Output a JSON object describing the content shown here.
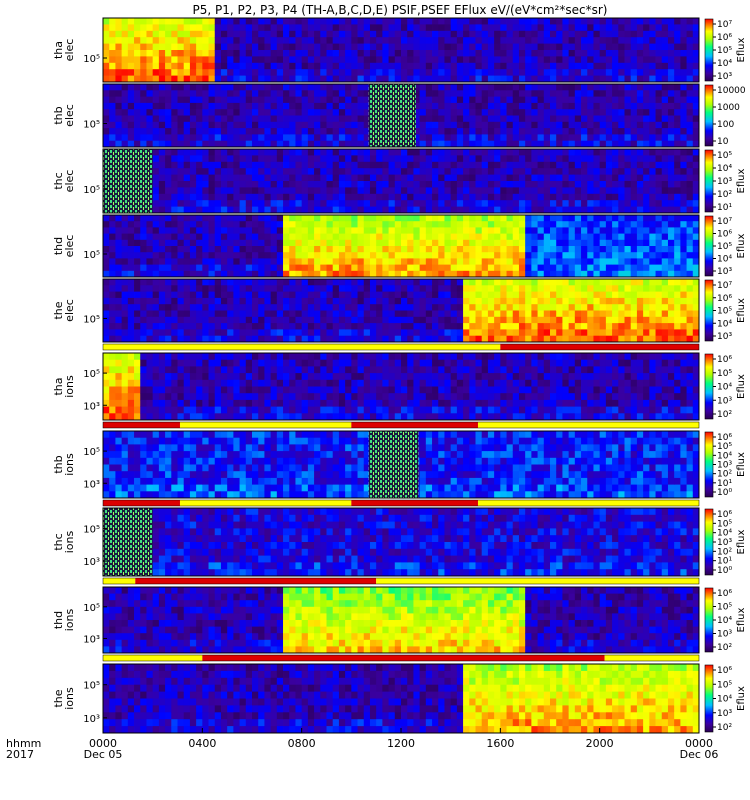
{
  "chart_data": {
    "type": "heatmap",
    "title": "P5, P1, P2, P3, P4 (TH-A,B,C,D,E) PSIF,PSEF EFlux eV/(eV*cm²*sec*sr)",
    "x_axis": {
      "row_label": "hhmm",
      "year_label": "2017",
      "range": [
        "0000 Dec 05",
        "0000 Dec 06"
      ],
      "ticks": [
        {
          "h": 0,
          "label": "0000",
          "sub": "Dec 05"
        },
        {
          "h": 4,
          "label": "0400",
          "sub": ""
        },
        {
          "h": 8,
          "label": "0800",
          "sub": ""
        },
        {
          "h": 12,
          "label": "1200",
          "sub": ""
        },
        {
          "h": 16,
          "label": "1600",
          "sub": ""
        },
        {
          "h": 20,
          "label": "2000",
          "sub": ""
        },
        {
          "h": 24,
          "label": "0000",
          "sub": "Dec 06"
        }
      ]
    },
    "colorbar_label": "Eflux",
    "panels": [
      {
        "name": "tha elec",
        "ylabel": [
          "tha",
          "elec"
        ],
        "yticks": [
          "10⁵"
        ],
        "cbar_ticks": [
          "10⁷",
          "10⁶",
          "10⁵",
          "10⁴",
          "10³"
        ],
        "cbar_title": "Eflux",
        "features": [
          {
            "t0": 0.0,
            "t1": 4.5,
            "level": 0.95,
            "desc": "intense low-energy flux decaying"
          },
          {
            "t0": 4.5,
            "t1": 24.0,
            "level": 0.15
          }
        ],
        "hatch": []
      },
      {
        "name": "thb elec",
        "ylabel": [
          "thb",
          "elec"
        ],
        "yticks": [
          "10⁵"
        ],
        "cbar_ticks": [
          "10000",
          "1000",
          "100",
          "10"
        ],
        "cbar_title": "",
        "features": [
          {
            "t0": 0.0,
            "t1": 24.0,
            "level": 0.15
          }
        ],
        "hatch": [
          {
            "t0": 10.7,
            "t1": 12.6
          }
        ]
      },
      {
        "name": "thc elec",
        "ylabel": [
          "thc",
          "elec"
        ],
        "yticks": [
          "10⁵"
        ],
        "cbar_ticks": [
          "10⁵",
          "10⁴",
          "10³",
          "10²",
          "10¹"
        ],
        "cbar_title": "Eflux",
        "features": [
          {
            "t0": 0.0,
            "t1": 24.0,
            "level": 0.15
          }
        ],
        "hatch": [
          {
            "t0": 0.0,
            "t1": 2.0
          }
        ]
      },
      {
        "name": "thd elec",
        "ylabel": [
          "thd",
          "elec"
        ],
        "yticks": [
          "10⁵"
        ],
        "cbar_ticks": [
          "10⁷",
          "10⁶",
          "10⁵",
          "10⁴",
          "10³"
        ],
        "cbar_title": "Eflux",
        "features": [
          {
            "t0": 0.0,
            "t1": 7.3,
            "level": 0.15
          },
          {
            "t0": 7.3,
            "t1": 17.0,
            "level": 0.9,
            "desc": "plasma sheet electrons"
          },
          {
            "t0": 17.0,
            "t1": 24.0,
            "level": 0.35
          }
        ],
        "hatch": []
      },
      {
        "name": "the elec",
        "ylabel": [
          "the",
          "elec"
        ],
        "yticks": [
          "10⁵"
        ],
        "cbar_ticks": [
          "10⁷",
          "10⁶",
          "10⁵",
          "10⁴",
          "10³"
        ],
        "cbar_title": "Eflux",
        "features": [
          {
            "t0": 0.0,
            "t1": 14.5,
            "level": 0.15
          },
          {
            "t0": 14.5,
            "t1": 24.0,
            "level": 0.95,
            "desc": "plasma sheet electrons"
          }
        ],
        "hatch": []
      },
      {
        "name": "tha ions",
        "ylabel": [
          "tha",
          "ions"
        ],
        "yticks": [
          "10⁵",
          "10³"
        ],
        "cbar_ticks": [
          "10⁶",
          "10⁵",
          "10⁴",
          "10³",
          "10²"
        ],
        "cbar_title": "Eflux",
        "features": [
          {
            "t0": 0.0,
            "t1": 1.5,
            "level": 0.95
          },
          {
            "t0": 1.5,
            "t1": 24.0,
            "level": 0.15
          }
        ],
        "hatch": []
      },
      {
        "name": "thb ions",
        "ylabel": [
          "thb",
          "ions"
        ],
        "yticks": [
          "10⁵",
          "10³"
        ],
        "cbar_ticks": [
          "10⁶",
          "10⁵",
          "10⁴",
          "10³",
          "10²",
          "10¹",
          "10⁰"
        ],
        "cbar_title": "Eflux",
        "features": [
          {
            "t0": 0.0,
            "t1": 24.0,
            "level": 0.25
          }
        ],
        "hatch": [
          {
            "t0": 10.7,
            "t1": 12.7
          }
        ]
      },
      {
        "name": "thc ions",
        "ylabel": [
          "thc",
          "ions"
        ],
        "yticks": [
          "10⁵",
          "10³"
        ],
        "cbar_ticks": [
          "10⁶",
          "10⁵",
          "10⁴",
          "10³",
          "10²",
          "10¹",
          "10⁰"
        ],
        "cbar_title": "Eflux",
        "features": [
          {
            "t0": 0.0,
            "t1": 24.0,
            "level": 0.2
          }
        ],
        "hatch": [
          {
            "t0": 0.0,
            "t1": 2.0
          }
        ]
      },
      {
        "name": "thd ions",
        "ylabel": [
          "thd",
          "ions"
        ],
        "yticks": [
          "10⁵",
          "10³"
        ],
        "cbar_ticks": [
          "10⁶",
          "10⁵",
          "10⁴",
          "10³",
          "10²"
        ],
        "cbar_title": "Eflux",
        "features": [
          {
            "t0": 0.0,
            "t1": 7.3,
            "level": 0.15
          },
          {
            "t0": 7.3,
            "t1": 17.0,
            "level": 0.85,
            "desc": "plasma sheet ions"
          },
          {
            "t0": 17.0,
            "t1": 24.0,
            "level": 0.15
          }
        ],
        "hatch": []
      },
      {
        "name": "the ions",
        "ylabel": [
          "the",
          "ions"
        ],
        "yticks": [
          "10⁵",
          "10³"
        ],
        "cbar_ticks": [
          "10⁶",
          "10⁵",
          "10⁴",
          "10³",
          "10²"
        ],
        "cbar_title": "Eflux",
        "features": [
          {
            "t0": 0.0,
            "t1": 14.5,
            "level": 0.15
          },
          {
            "t0": 14.5,
            "t1": 24.0,
            "level": 0.9,
            "desc": "plasma sheet ions"
          }
        ],
        "hatch": []
      }
    ],
    "mode_bars": [
      {
        "after_panel": 4,
        "segments": [
          {
            "t0": 0.0,
            "t1": 16.0,
            "color": "#ffff00"
          },
          {
            "t0": 16.0,
            "t1": 24.0,
            "color": "#dd0000"
          }
        ]
      },
      {
        "after_panel": 5,
        "segments": [
          {
            "t0": 0.0,
            "t1": 3.1,
            "color": "#dd0000"
          },
          {
            "t0": 3.1,
            "t1": 10.0,
            "color": "#ffff00"
          },
          {
            "t0": 10.0,
            "t1": 15.1,
            "color": "#dd0000"
          },
          {
            "t0": 15.1,
            "t1": 24.0,
            "color": "#ffff00"
          }
        ]
      },
      {
        "after_panel": 6,
        "segments": [
          {
            "t0": 0.0,
            "t1": 3.1,
            "color": "#dd0000"
          },
          {
            "t0": 3.1,
            "t1": 10.0,
            "color": "#ffff00"
          },
          {
            "t0": 10.0,
            "t1": 15.1,
            "color": "#dd0000"
          },
          {
            "t0": 15.1,
            "t1": 24.0,
            "color": "#ffff00"
          }
        ]
      },
      {
        "after_panel": 7,
        "segments": [
          {
            "t0": 0.0,
            "t1": 1.3,
            "color": "#ffff00"
          },
          {
            "t0": 1.3,
            "t1": 11.0,
            "color": "#dd0000"
          },
          {
            "t0": 11.0,
            "t1": 24.0,
            "color": "#ffff00"
          }
        ]
      },
      {
        "after_panel": 8,
        "segments": [
          {
            "t0": 0.0,
            "t1": 4.0,
            "color": "#ffff00"
          },
          {
            "t0": 4.0,
            "t1": 20.2,
            "color": "#dd0000"
          },
          {
            "t0": 20.2,
            "t1": 24.0,
            "color": "#ffff00"
          }
        ]
      }
    ],
    "colors": {
      "frame": "#000000",
      "background": "#ffffff"
    }
  }
}
